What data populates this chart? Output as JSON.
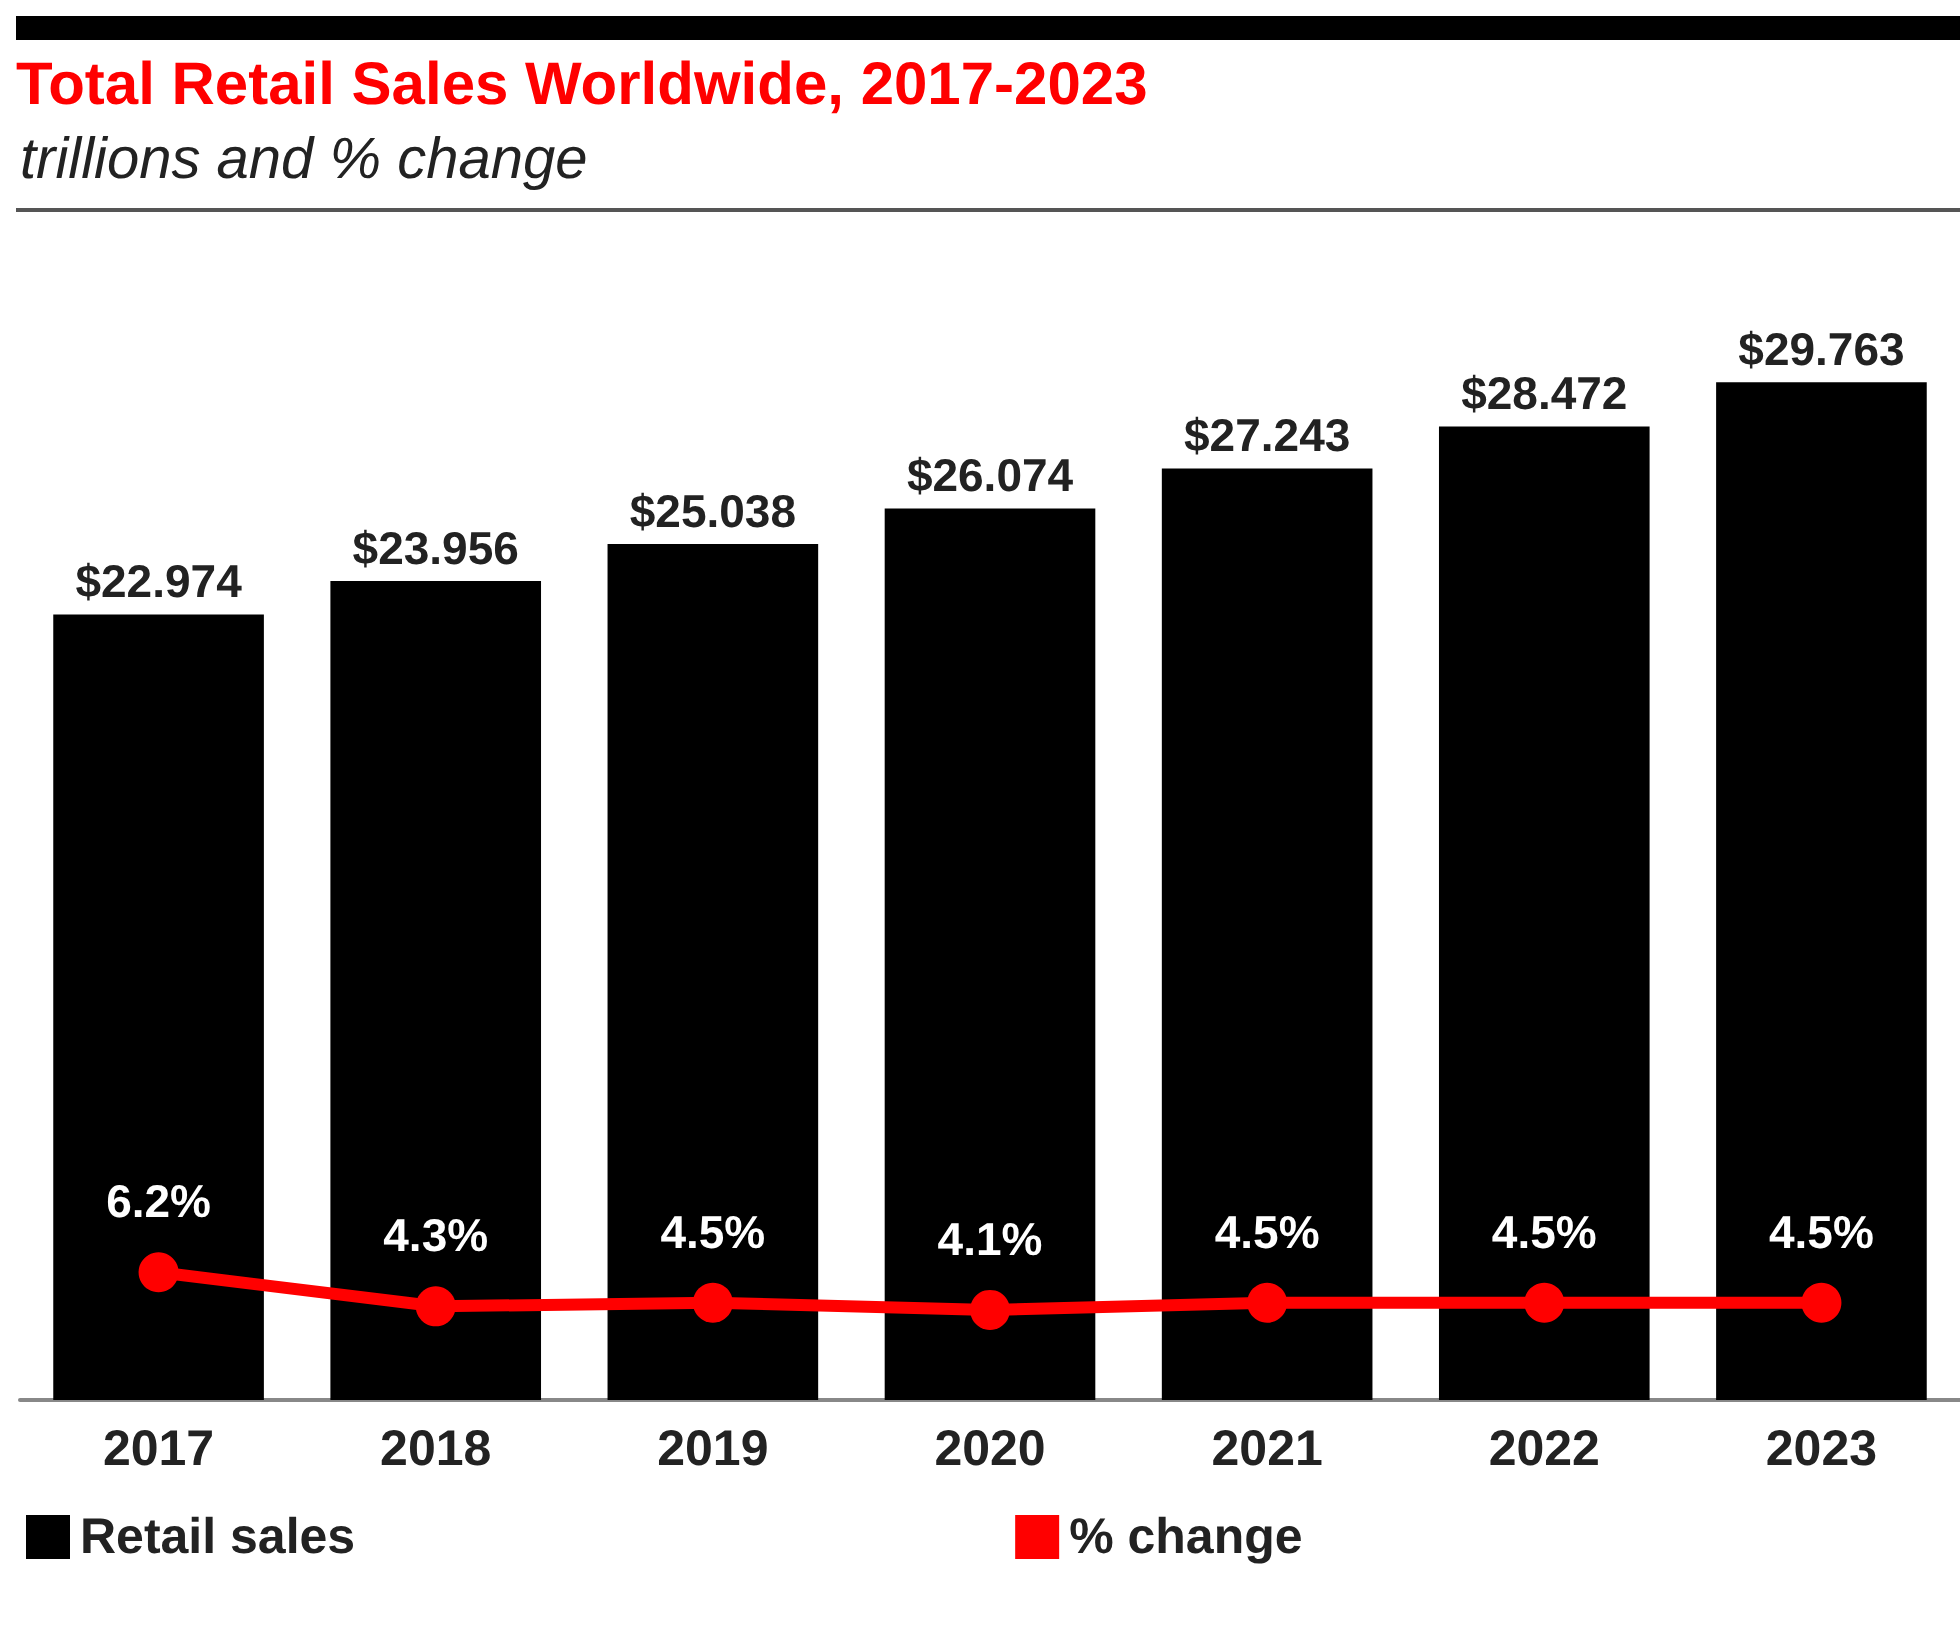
{
  "chart_data": {
    "type": "bar",
    "title": "Total Retail Sales Worldwide, 2017-2023",
    "subtitle": "trillions and % change",
    "categories": [
      "2017",
      "2018",
      "2019",
      "2020",
      "2021",
      "2022",
      "2023"
    ],
    "series": [
      {
        "name": "Retail sales",
        "color": "#000000",
        "values": [
          22.974,
          23.956,
          25.038,
          26.074,
          27.243,
          28.472,
          29.763
        ],
        "value_labels": [
          "$22.974",
          "$23.956",
          "$25.038",
          "$26.074",
          "$27.243",
          "$28.472",
          "$29.763"
        ]
      },
      {
        "name": "% change",
        "type": "line",
        "axis": "y2",
        "color": "#ff0000",
        "values": [
          6.2,
          4.3,
          4.5,
          4.1,
          4.5,
          4.5,
          4.5
        ],
        "value_labels": [
          "6.2%",
          "4.3%",
          "4.5%",
          "4.1%",
          "4.5%",
          "4.5%",
          "4.5%"
        ]
      }
    ],
    "tick_labels": "x",
    "grid": false,
    "legend": "bottom left",
    "marker": "circle",
    "line_style": "solid"
  }
}
